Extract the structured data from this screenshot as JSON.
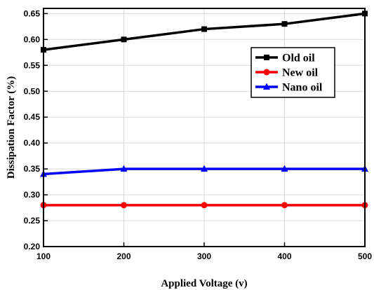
{
  "chart_data": {
    "type": "line",
    "title": "",
    "xlabel": "Applied Voltage (v)",
    "ylabel": "Dissipation Factor (%)",
    "x": [
      100,
      200,
      300,
      400,
      500
    ],
    "xlim": [
      100,
      500
    ],
    "ylim": [
      0.2,
      0.66
    ],
    "xticks": [
      "100",
      "200",
      "300",
      "400",
      "500"
    ],
    "yticks": [
      "0.20",
      "0.25",
      "0.30",
      "0.35",
      "0.40",
      "0.45",
      "0.50",
      "0.55",
      "0.60",
      "0.65"
    ],
    "grid": true,
    "legend_position": "top-right",
    "series": [
      {
        "name": "Old oil",
        "values": [
          0.58,
          0.6,
          0.62,
          0.63,
          0.65
        ],
        "color": "#000000",
        "marker": "square"
      },
      {
        "name": "New oil",
        "values": [
          0.28,
          0.28,
          0.28,
          0.28,
          0.28
        ],
        "color": "#ff0000",
        "marker": "circle"
      },
      {
        "name": "Nano oil",
        "values": [
          0.34,
          0.35,
          0.35,
          0.35,
          0.35
        ],
        "color": "#0000ff",
        "marker": "triangle"
      }
    ]
  }
}
